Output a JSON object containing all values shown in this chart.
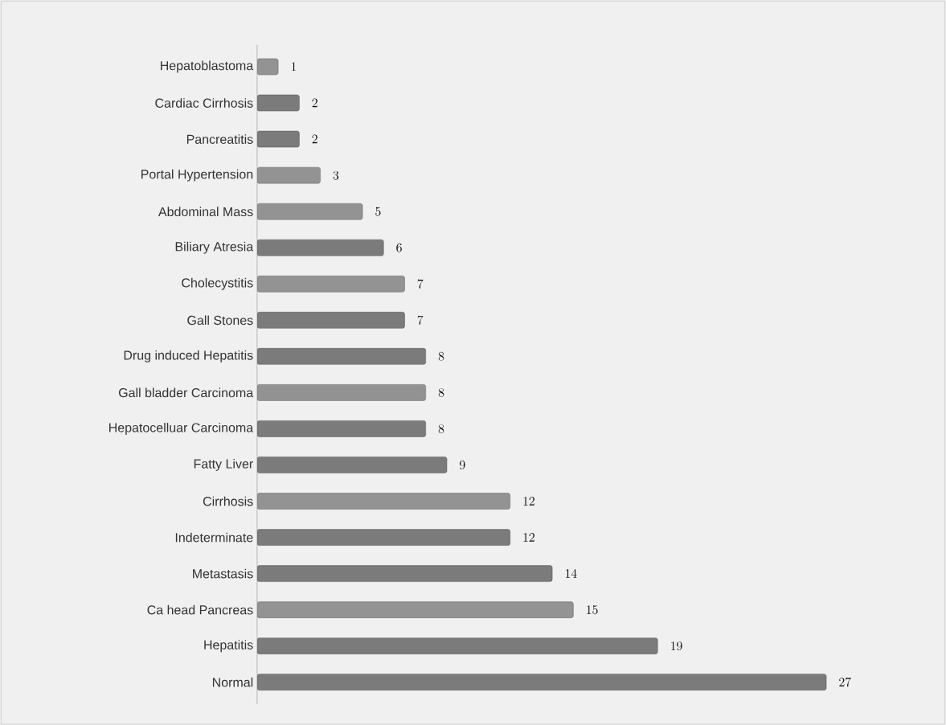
{
  "chart_data": {
    "type": "bar",
    "orientation": "horizontal",
    "data_labels": true,
    "categories": [
      "Hepatoblastoma",
      "Cardiac Cirrhosis",
      "Pancreatitis",
      "Portal Hypertension",
      "Abdominal Mass",
      "Biliary Atresia",
      "Cholecystitis",
      "Gall Stones",
      "Drug induced Hepatitis",
      "Gall bladder Carcinoma",
      "Hepatocelluar Carcinoma",
      "Fatty Liver",
      "Cirrhosis",
      "Indeterminate",
      "Metastasis",
      "Ca head Pancreas",
      "Hepatitis",
      "Normal"
    ],
    "values": [
      1,
      2,
      2,
      3,
      5,
      6,
      7,
      7,
      8,
      8,
      8,
      9,
      12,
      12,
      14,
      15,
      19,
      27
    ],
    "colors": [
      "#939393",
      "#7b7b7b",
      "#7b7b7b",
      "#939393",
      "#939393",
      "#7b7b7b",
      "#939393",
      "#7b7b7b",
      "#7b7b7b",
      "#939393",
      "#7b7b7b",
      "#7b7b7b",
      "#939393",
      "#7b7b7b",
      "#7b7b7b",
      "#939393",
      "#7b7b7b",
      "#7b7b7b"
    ]
  }
}
